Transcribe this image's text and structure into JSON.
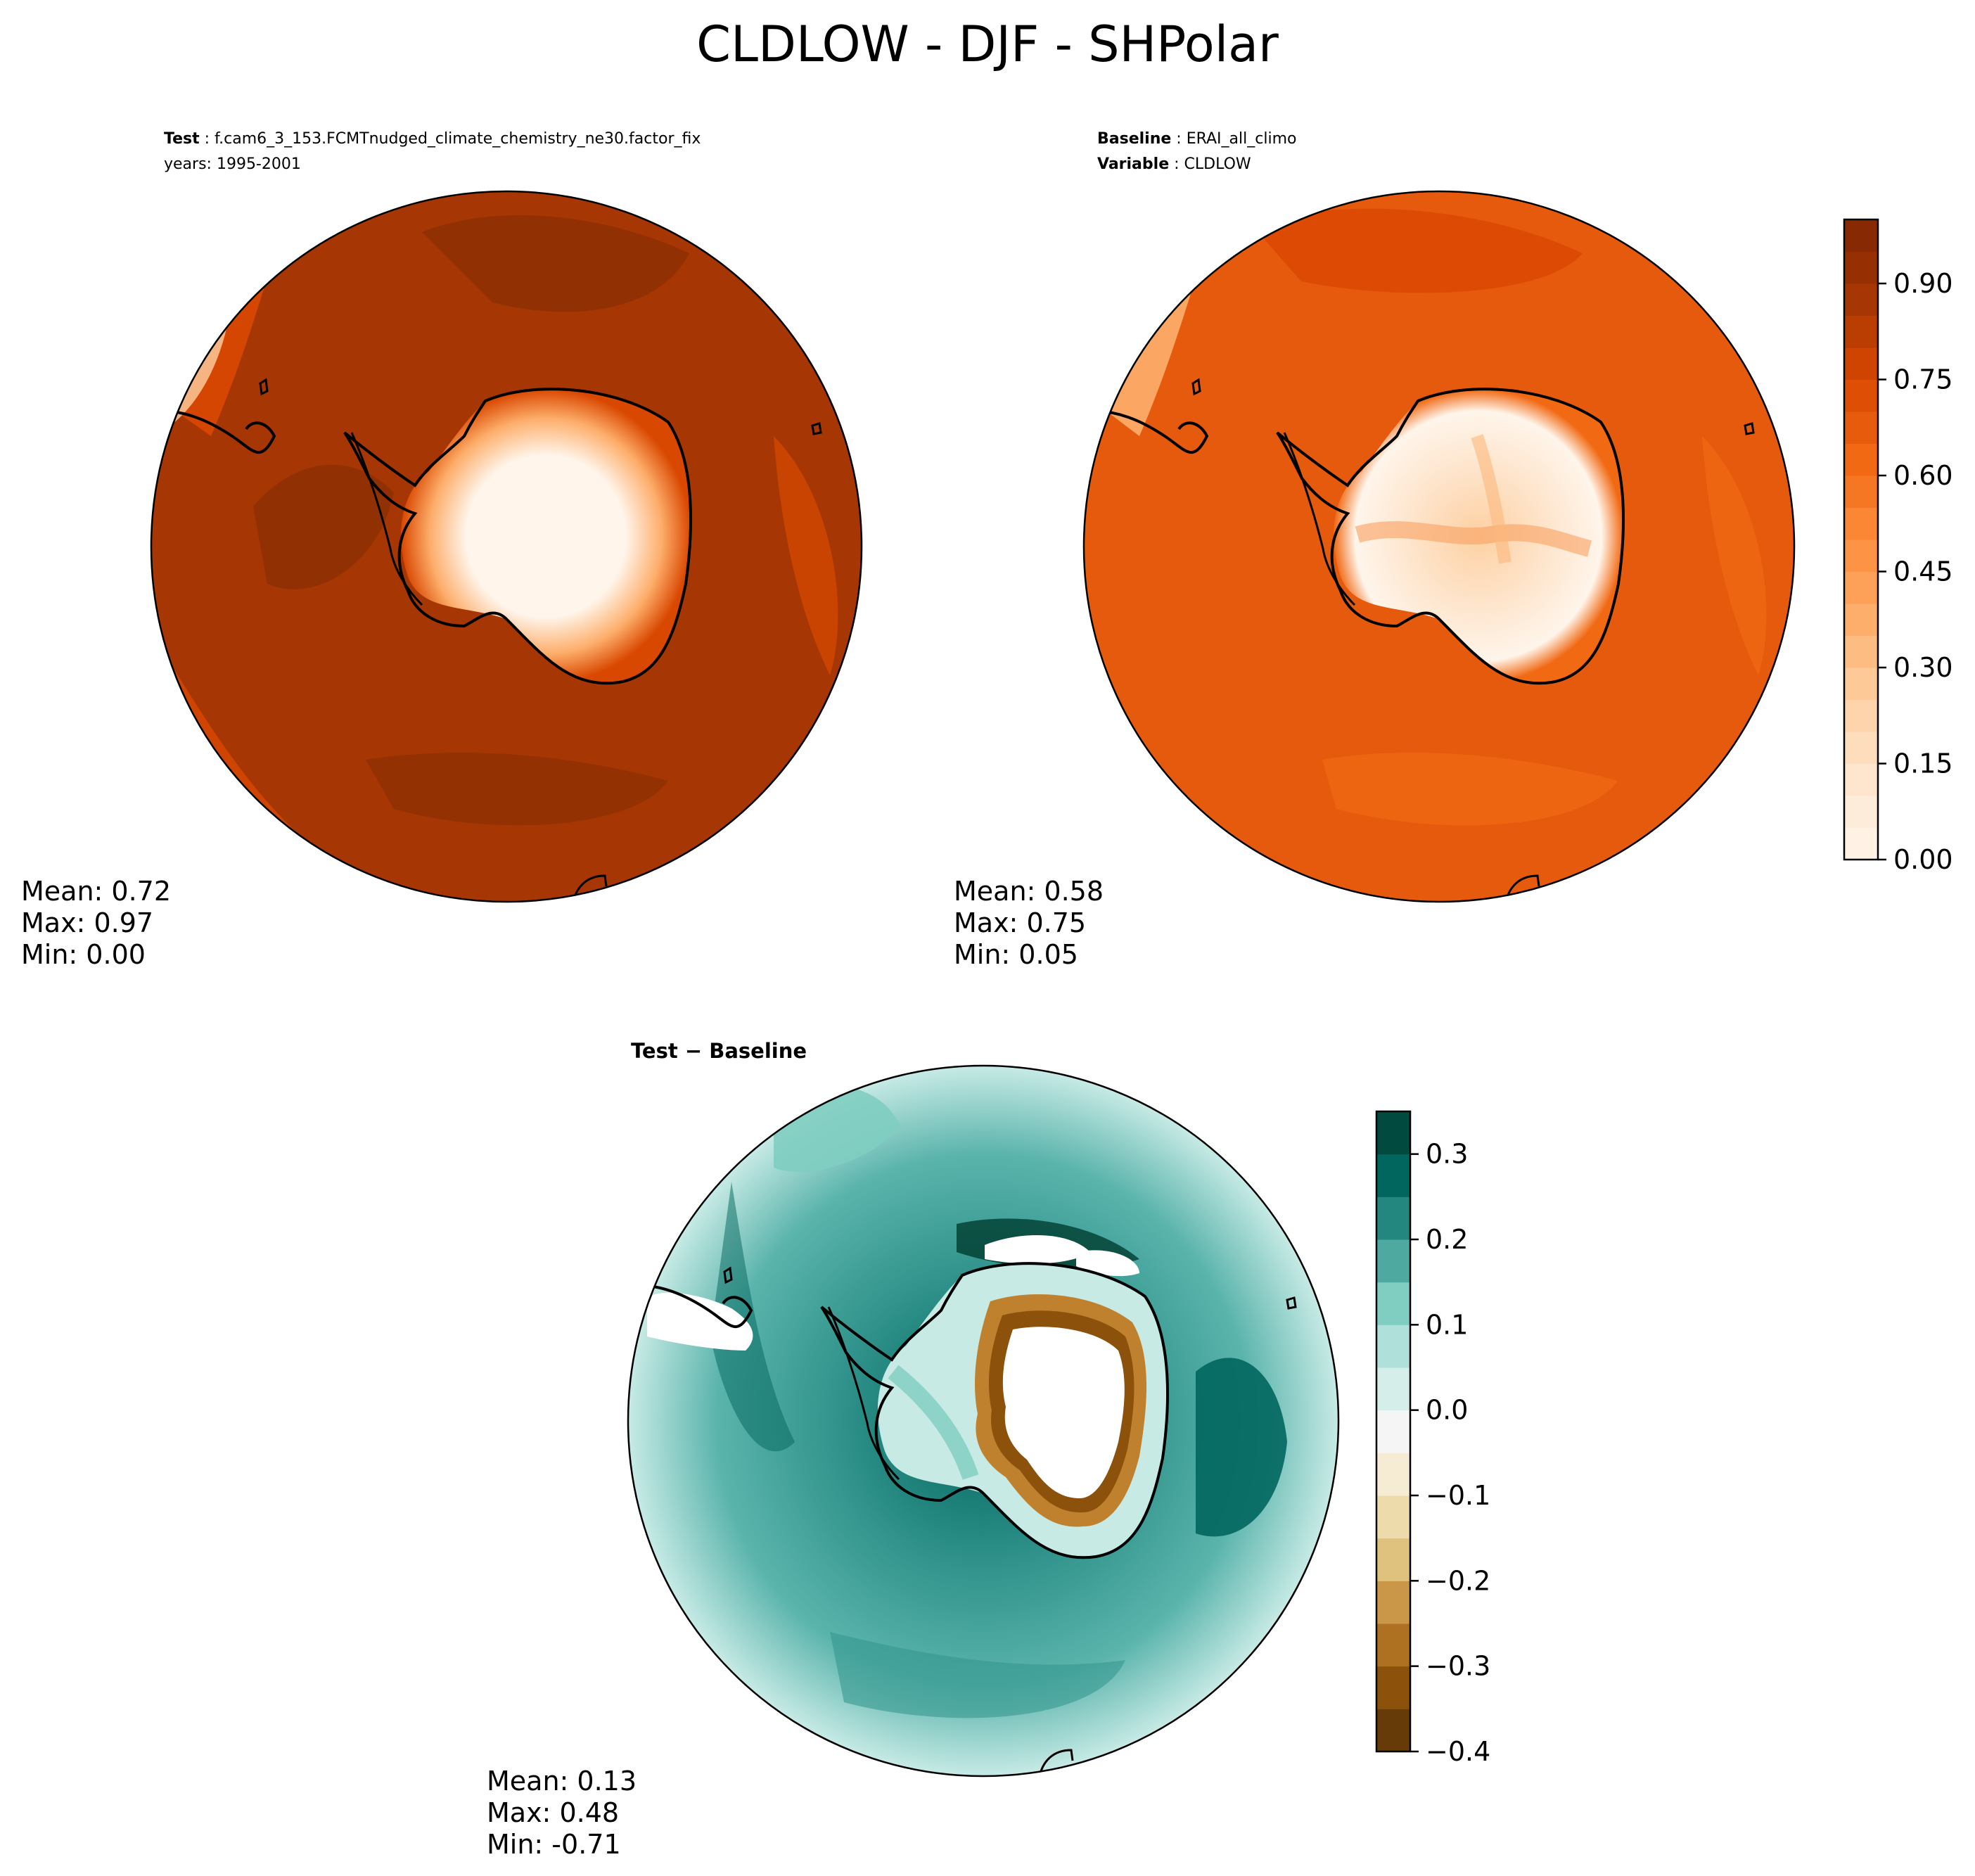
{
  "figure_title": "CLDLOW - DJF - SHPolar",
  "panels": {
    "test": {
      "label": "Test",
      "case": "f.cam6_3_153.FCMTnudged_climate_chemistry_ne30.factor_fix",
      "years": "years: 1995-2001",
      "stats": {
        "mean": "Mean:  0.72",
        "max": "Max:  0.97",
        "min": "Min:  0.00"
      }
    },
    "baseline": {
      "label_baseline": "Baseline",
      "case": "ERAI_all_climo",
      "label_variable": "Variable",
      "variable": "CLDLOW",
      "stats": {
        "mean": "Mean:  0.58",
        "max": "Max:  0.75",
        "min": "Min:  0.05"
      }
    },
    "difference": {
      "title": "Test − Baseline",
      "stats": {
        "mean": "Mean:  0.13",
        "max": "Max:  0.48",
        "min": "Min: -0.71"
      }
    }
  },
  "colors": {
    "orange_ramp": [
      "#fff5eb",
      "#fee6ce",
      "#fdd0a2",
      "#fdae6b",
      "#fd8d3c",
      "#f16913",
      "#d94801",
      "#a63603",
      "#7f2704"
    ],
    "diverging_ramp": [
      "#543005",
      "#8c510a",
      "#bf812d",
      "#dfc27d",
      "#f6e8c3",
      "#f5f5f5",
      "#c7eae5",
      "#80cdc1",
      "#35978f",
      "#01665e",
      "#003c30"
    ],
    "outline": "#000000"
  },
  "chart_data": [
    {
      "type": "heatmap",
      "name": "test",
      "projection": "south polar stereographic",
      "variable": "CLDLOW",
      "season": "DJF",
      "region": "SHPolar",
      "mean": 0.72,
      "max": 0.97,
      "min": 0.0,
      "colorbar": {
        "levels": [
          0.0,
          0.05,
          0.1,
          0.15,
          0.2,
          0.25,
          0.3,
          0.35,
          0.4,
          0.45,
          0.5,
          0.55,
          0.6,
          0.65,
          0.7,
          0.75,
          0.8,
          0.85,
          0.9,
          0.95,
          1.0
        ],
        "ticks": [
          0.0,
          0.15,
          0.3,
          0.45,
          0.6,
          0.75,
          0.9
        ],
        "tick_labels": [
          "0.00",
          "0.15",
          "0.30",
          "0.45",
          "0.60",
          "0.75",
          "0.90"
        ]
      }
    },
    {
      "type": "heatmap",
      "name": "baseline",
      "projection": "south polar stereographic",
      "variable": "CLDLOW",
      "mean": 0.58,
      "max": 0.75,
      "min": 0.05,
      "colorbar": "shared with test"
    },
    {
      "type": "heatmap",
      "name": "difference",
      "projection": "south polar stereographic",
      "title": "Test − Baseline",
      "mean": 0.13,
      "max": 0.48,
      "min": -0.71,
      "colorbar": {
        "levels": [
          -0.4,
          -0.35,
          -0.3,
          -0.25,
          -0.2,
          -0.15,
          -0.1,
          -0.05,
          0.0,
          0.05,
          0.1,
          0.15,
          0.2,
          0.25,
          0.3,
          0.35
        ],
        "ticks": [
          -0.4,
          -0.3,
          -0.2,
          -0.1,
          0.0,
          0.1,
          0.2,
          0.3
        ],
        "tick_labels": [
          "−0.4",
          "−0.3",
          "−0.2",
          "−0.1",
          "0.0",
          "0.1",
          "0.2",
          "0.3"
        ]
      }
    }
  ]
}
